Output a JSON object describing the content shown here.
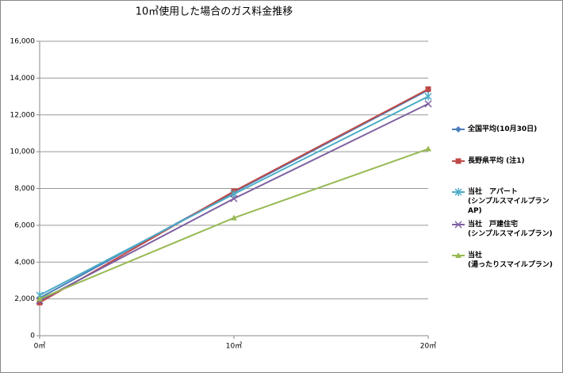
{
  "chart_data": {
    "type": "line",
    "title": "10㎥使用した場合のガス料金推移",
    "categories": [
      "0㎥",
      "10㎥",
      "20㎥"
    ],
    "series": [
      {
        "name": "全国平均(10月30日)",
        "color": "#4a7ebb",
        "marker": "diamond",
        "values": [
          2050,
          7800,
          13350
        ]
      },
      {
        "name": "長野県平均 (注1)",
        "color": "#be4b48",
        "marker": "square",
        "values": [
          1800,
          7850,
          13400
        ]
      },
      {
        "name": "当社　アパート\n(シンプルスマイルプランAP)",
        "color": "#4bacc6",
        "marker": "star",
        "values": [
          2200,
          7700,
          13000
        ]
      },
      {
        "name": "当社　戸建住宅\n(シンプルスマイルプラン)",
        "color": "#7d60a0",
        "marker": "x",
        "values": [
          1900,
          7450,
          12600
        ]
      },
      {
        "name": "当社\n(湯ったりスマイルプラン)",
        "color": "#98b954",
        "marker": "triangle",
        "values": [
          2000,
          6400,
          10150
        ]
      }
    ],
    "ylim": [
      0,
      16000
    ],
    "yticks": [
      0,
      {
        "value": 2000,
        "label": "2,000"
      },
      {
        "value": 4000,
        "label": "4,000"
      },
      {
        "value": 6000,
        "label": "6,000"
      },
      {
        "value": 8000,
        "label": "8,000"
      },
      {
        "value": 10000,
        "label": "10,000"
      },
      {
        "value": 12000,
        "label": "12,000"
      },
      {
        "value": 14000,
        "label": "14,000"
      },
      {
        "value": 16000,
        "label": "16,000"
      }
    ],
    "grid": true,
    "legend": "right"
  }
}
